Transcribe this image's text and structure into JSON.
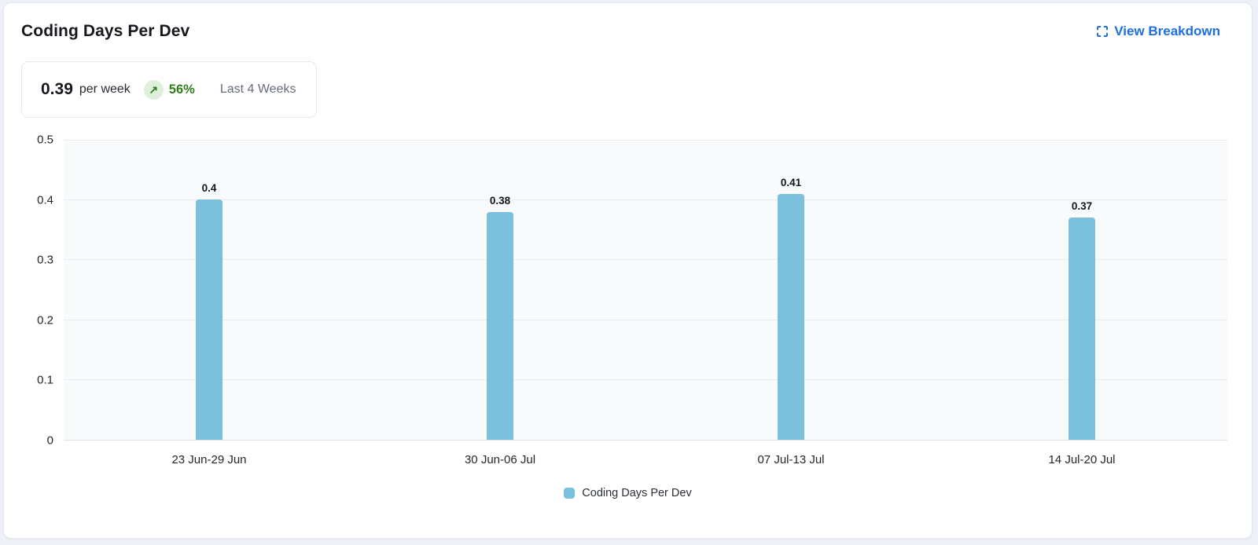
{
  "card": {
    "title": "Coding Days Per Dev",
    "view_breakdown_label": "View Breakdown"
  },
  "summary": {
    "value": "0.39",
    "unit": "per week",
    "trend_arrow": "↗",
    "trend_percent": "56%",
    "period": "Last 4 Weeks"
  },
  "chart_data": {
    "type": "bar",
    "title": "Coding Days Per Dev",
    "categories": [
      "23 Jun-29 Jun",
      "30 Jun-06 Jul",
      "07 Jul-13 Jul",
      "14 Jul-20 Jul"
    ],
    "values": [
      0.4,
      0.38,
      0.41,
      0.37
    ],
    "value_labels": [
      "0.4",
      "0.38",
      "0.41",
      "0.37"
    ],
    "xlabel": "",
    "ylabel": "",
    "ylim": [
      0,
      0.5
    ],
    "yticks": [
      "0.5",
      "0.4",
      "0.3",
      "0.2",
      "0.1",
      "0"
    ],
    "grid": "horizontal",
    "legend_position": "bottom",
    "legend": [
      {
        "label": "Coding Days Per Dev",
        "color": "#7BC0DC"
      }
    ],
    "bar_color": "#7BC0DC"
  },
  "colors": {
    "accent_blue": "#1D6FE0",
    "bar_blue": "#7BC0DC",
    "trend_green": "#2F7D1B",
    "trend_badge_bg": "#DEF0DA",
    "muted_text": "#676D7C",
    "plot_bg": "#F8FAFC",
    "gridline": "#E9EBEF",
    "card_border": "#E3E7EE",
    "page_bg": "#EDF0F6"
  }
}
